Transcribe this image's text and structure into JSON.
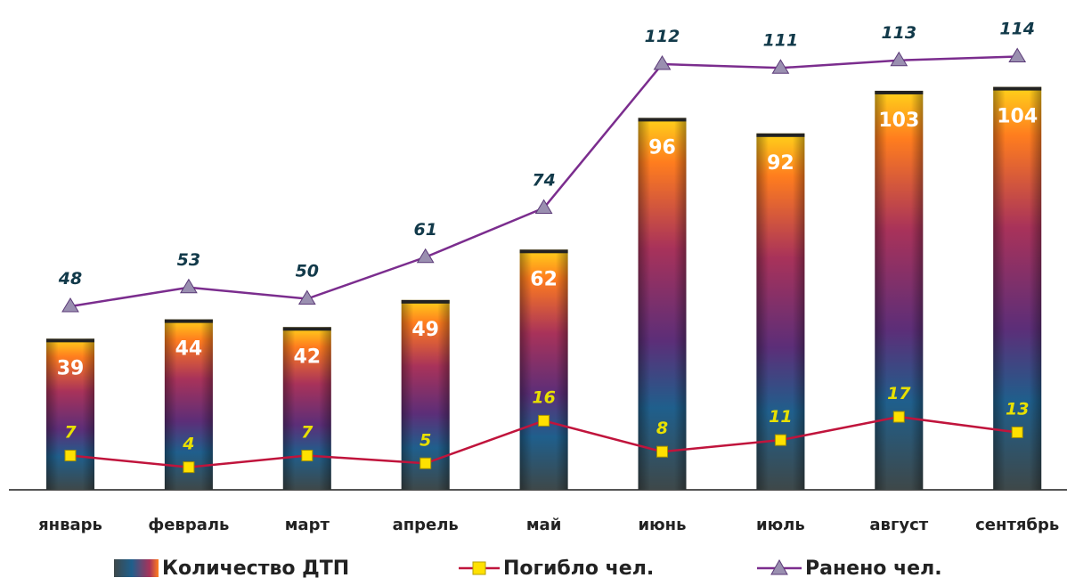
{
  "chart_data": {
    "type": "bar",
    "categories": [
      "январь",
      "февраль",
      "март",
      "апрель",
      "май",
      "июнь",
      "июль",
      "август",
      "сентябрь"
    ],
    "series": [
      {
        "name": "Количество ДТП",
        "type": "bar",
        "values": [
          39,
          44,
          42,
          49,
          62,
          96,
          92,
          103,
          104
        ]
      },
      {
        "name": "Погибло чел.",
        "type": "line",
        "values": [
          7,
          4,
          7,
          5,
          16,
          8,
          11,
          17,
          13
        ],
        "color": "#c0143c",
        "marker": "square",
        "marker_color": "#ffe100",
        "label_color": "#e8e000"
      },
      {
        "name": "Ранено чел.",
        "type": "line",
        "values": [
          48,
          53,
          50,
          61,
          74,
          112,
          111,
          113,
          114
        ],
        "color": "#7b2d8e",
        "marker": "triangle",
        "marker_color": "#9a8fb0",
        "label_color": "#123a4a"
      }
    ],
    "bar_colors": {
      "top": "#ffc21a",
      "upper": "#ff7a1a",
      "middle": "#8a2e6a",
      "lower": "#1d5f8a",
      "bottom": "#3f4a4c"
    },
    "ylim": [
      0,
      130
    ],
    "grid": false,
    "legend_position": "bottom"
  }
}
